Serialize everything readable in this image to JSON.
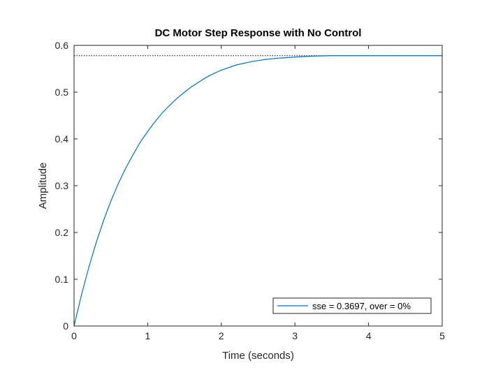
{
  "chart_data": {
    "type": "line",
    "title": "DC Motor Step Response with No Control",
    "xlabel": "Time (seconds)",
    "ylabel": "Amplitude",
    "xlim": [
      0,
      5
    ],
    "ylim": [
      0,
      0.6
    ],
    "xticks": [
      0,
      1,
      2,
      3,
      4,
      5
    ],
    "xtick_labels": [
      "0",
      "1",
      "2",
      "3",
      "4",
      "5"
    ],
    "yticks": [
      0,
      0.1,
      0.2,
      0.3,
      0.4,
      0.5,
      0.6
    ],
    "ytick_labels": [
      "0",
      "0.1",
      "0.2",
      "0.3",
      "0.4",
      "0.5",
      "0.6"
    ],
    "grid": false,
    "legend_position": "bottom-right",
    "series": [
      {
        "name": "sse = 0.3697, over = 0%",
        "color": "#0072bd",
        "x": [
          0,
          0.1,
          0.2,
          0.3,
          0.4,
          0.5,
          0.6,
          0.7,
          0.8,
          0.9,
          1.0,
          1.1,
          1.2,
          1.3,
          1.4,
          1.5,
          1.6,
          1.7,
          1.8,
          1.9,
          2.0,
          2.2,
          2.4,
          2.6,
          2.8,
          3.0,
          3.25,
          3.5,
          3.75,
          4.0,
          4.25,
          4.5,
          4.75,
          5.0
        ],
        "y": [
          0,
          0.066,
          0.125,
          0.178,
          0.225,
          0.267,
          0.304,
          0.337,
          0.366,
          0.393,
          0.416,
          0.437,
          0.456,
          0.472,
          0.487,
          0.5,
          0.512,
          0.522,
          0.532,
          0.54,
          0.547,
          0.558,
          0.565,
          0.57,
          0.573,
          0.575,
          0.577,
          0.578,
          0.578,
          0.578,
          0.578,
          0.578,
          0.578,
          0.578
        ]
      }
    ],
    "reference_line": {
      "y": 0.578,
      "style": "dotted",
      "color": "#000000"
    }
  }
}
